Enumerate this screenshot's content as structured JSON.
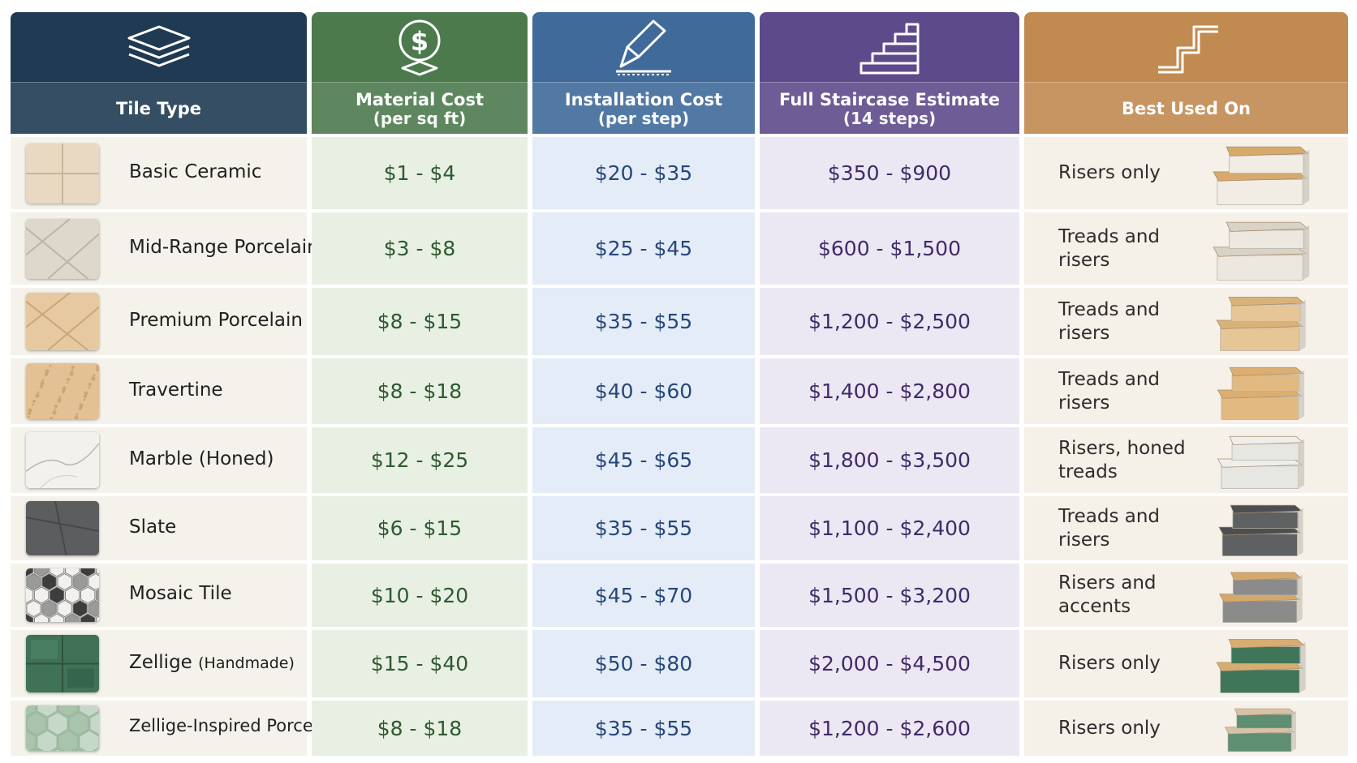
{
  "headers": {
    "tile_type": "Tile Type",
    "material_cost": "Material Cost",
    "material_cost_unit": "(per sq ft)",
    "installation_cost": "Installation Cost",
    "installation_cost_unit": "(per step)",
    "full_estimate": "Full Staircase Estimate",
    "full_estimate_unit": "(14 steps)",
    "best_used_on": "Best Used On"
  },
  "header_icons": [
    "tile-layers-icon",
    "dollar-coin-icon",
    "trowel-icon",
    "staircase-icon",
    "step-outline-icon"
  ],
  "colors": {
    "tile_type": "#1f3a52",
    "material_cost": "#4c7a4d",
    "installation_cost": "#3f6a9a",
    "full_estimate": "#5d4a8a",
    "best_used_on": "#c18a50"
  },
  "rows": [
    {
      "name": "Basic Ceramic",
      "material": "$1 - $4",
      "install": "$20 - $35",
      "full": "$350 - $900",
      "best": [
        "Risers only"
      ]
    },
    {
      "name": "Mid-Range Porcelain",
      "material": "$3 - $8",
      "install": "$25 - $45",
      "full": "$600 - $1,500",
      "best": [
        "Treads and",
        "risers"
      ]
    },
    {
      "name": "Premium Porcelain",
      "material": "$8 - $15",
      "install": "$35 - $55",
      "full": "$1,200 - $2,500",
      "best": [
        "Treads and",
        "risers"
      ]
    },
    {
      "name": "Travertine",
      "material": "$8 - $18",
      "install": "$40 - $60",
      "full": "$1,400 - $2,800",
      "best": [
        "Treads and",
        "risers"
      ]
    },
    {
      "name": "Marble (Honed)",
      "material": "$12 - $25",
      "install": "$45 - $65",
      "full": "$1,800 - $3,500",
      "best": [
        "Risers, honed",
        "treads"
      ]
    },
    {
      "name": "Slate",
      "material": "$6 - $15",
      "install": "$35 - $55",
      "full": "$1,100 - $2,400",
      "best": [
        "Treads and",
        "risers"
      ]
    },
    {
      "name": "Mosaic Tile",
      "material": "$10 - $20",
      "install": "$45 - $70",
      "full": "$1,500 - $3,200",
      "best": [
        "Risers and",
        "accents"
      ]
    },
    {
      "name": "Zellige",
      "name_suffix": "(Handmade)",
      "material": "$15 - $40",
      "install": "$50 - $80",
      "full": "$2,000 - $4,500",
      "best": [
        "Risers only"
      ]
    },
    {
      "name": "Zellige-Inspired Porcelain",
      "material": "$8 - $18",
      "install": "$35 - $55",
      "full": "$1,200 - $2,600",
      "best": [
        "Risers only"
      ]
    }
  ]
}
